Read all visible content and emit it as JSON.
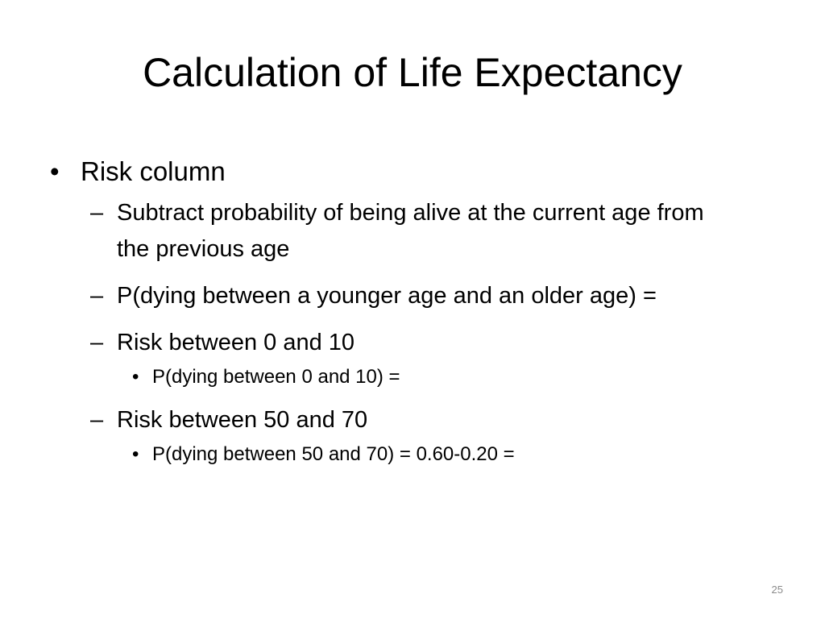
{
  "slide": {
    "title": "Calculation of Life Expectancy",
    "bullets": [
      {
        "marker": "•",
        "text": "Risk column"
      },
      {
        "marker": "–",
        "text": "Subtract probability of being alive at the current age from the previous age"
      },
      {
        "marker": "–",
        "text": "P(dying between a younger age and an older age) ="
      },
      {
        "marker": "–",
        "text": "Risk between 0 and 10"
      },
      {
        "marker": "•",
        "text": "P(dying between 0 and 10) ="
      },
      {
        "marker": "–",
        "text": "Risk between 50 and 70"
      },
      {
        "marker": "•",
        "text": "P(dying between 50 and 70) = 0.60-0.20 ="
      }
    ],
    "page_number": "25"
  }
}
